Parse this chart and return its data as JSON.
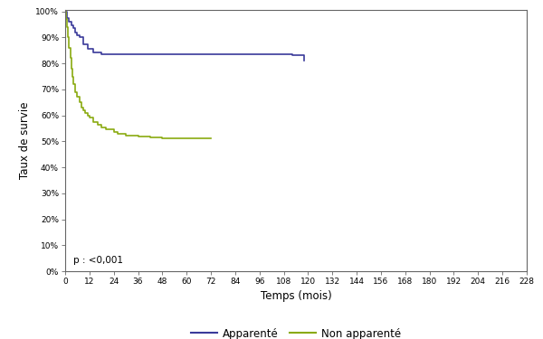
{
  "title": "",
  "xlabel": "Temps (mois)",
  "ylabel": "Taux de survie",
  "annotation": "p : <0,001",
  "xlim": [
    0,
    228
  ],
  "ylim": [
    0,
    1.005
  ],
  "xticks": [
    0,
    12,
    24,
    36,
    48,
    60,
    72,
    84,
    96,
    108,
    120,
    132,
    144,
    156,
    168,
    180,
    192,
    204,
    216,
    228
  ],
  "yticks": [
    0.0,
    0.1,
    0.2,
    0.3,
    0.4,
    0.5,
    0.6,
    0.7,
    0.8,
    0.9,
    1.0
  ],
  "ytick_labels": [
    "0%",
    "10%",
    "20%",
    "30%",
    "40%",
    "50%",
    "60%",
    "70%",
    "80%",
    "90%",
    "100%"
  ],
  "color_apparen": "#3a3a9a",
  "color_non_apparen": "#8aaa10",
  "legend_labels": [
    "Apparenté",
    "Non apparenté"
  ],
  "apparen_x": [
    0,
    1,
    2,
    3,
    4,
    5,
    6,
    7,
    9,
    11,
    14,
    18,
    20,
    110,
    112,
    118
  ],
  "apparen_y": [
    1.0,
    0.975,
    0.96,
    0.945,
    0.935,
    0.92,
    0.91,
    0.9,
    0.875,
    0.855,
    0.843,
    0.837,
    0.835,
    0.835,
    0.833,
    0.81
  ],
  "non_apparen_x": [
    0,
    0.5,
    1,
    1.5,
    2,
    2.5,
    3,
    3.5,
    4,
    5,
    6,
    7,
    8,
    9,
    10,
    11,
    12,
    14,
    16,
    18,
    20,
    24,
    26,
    30,
    36,
    42,
    48,
    54,
    60,
    72
  ],
  "non_apparen_y": [
    1.0,
    0.97,
    0.94,
    0.9,
    0.86,
    0.82,
    0.78,
    0.75,
    0.72,
    0.69,
    0.67,
    0.65,
    0.63,
    0.62,
    0.61,
    0.6,
    0.59,
    0.575,
    0.565,
    0.555,
    0.545,
    0.535,
    0.528,
    0.523,
    0.518,
    0.515,
    0.513,
    0.512,
    0.511,
    0.51
  ]
}
